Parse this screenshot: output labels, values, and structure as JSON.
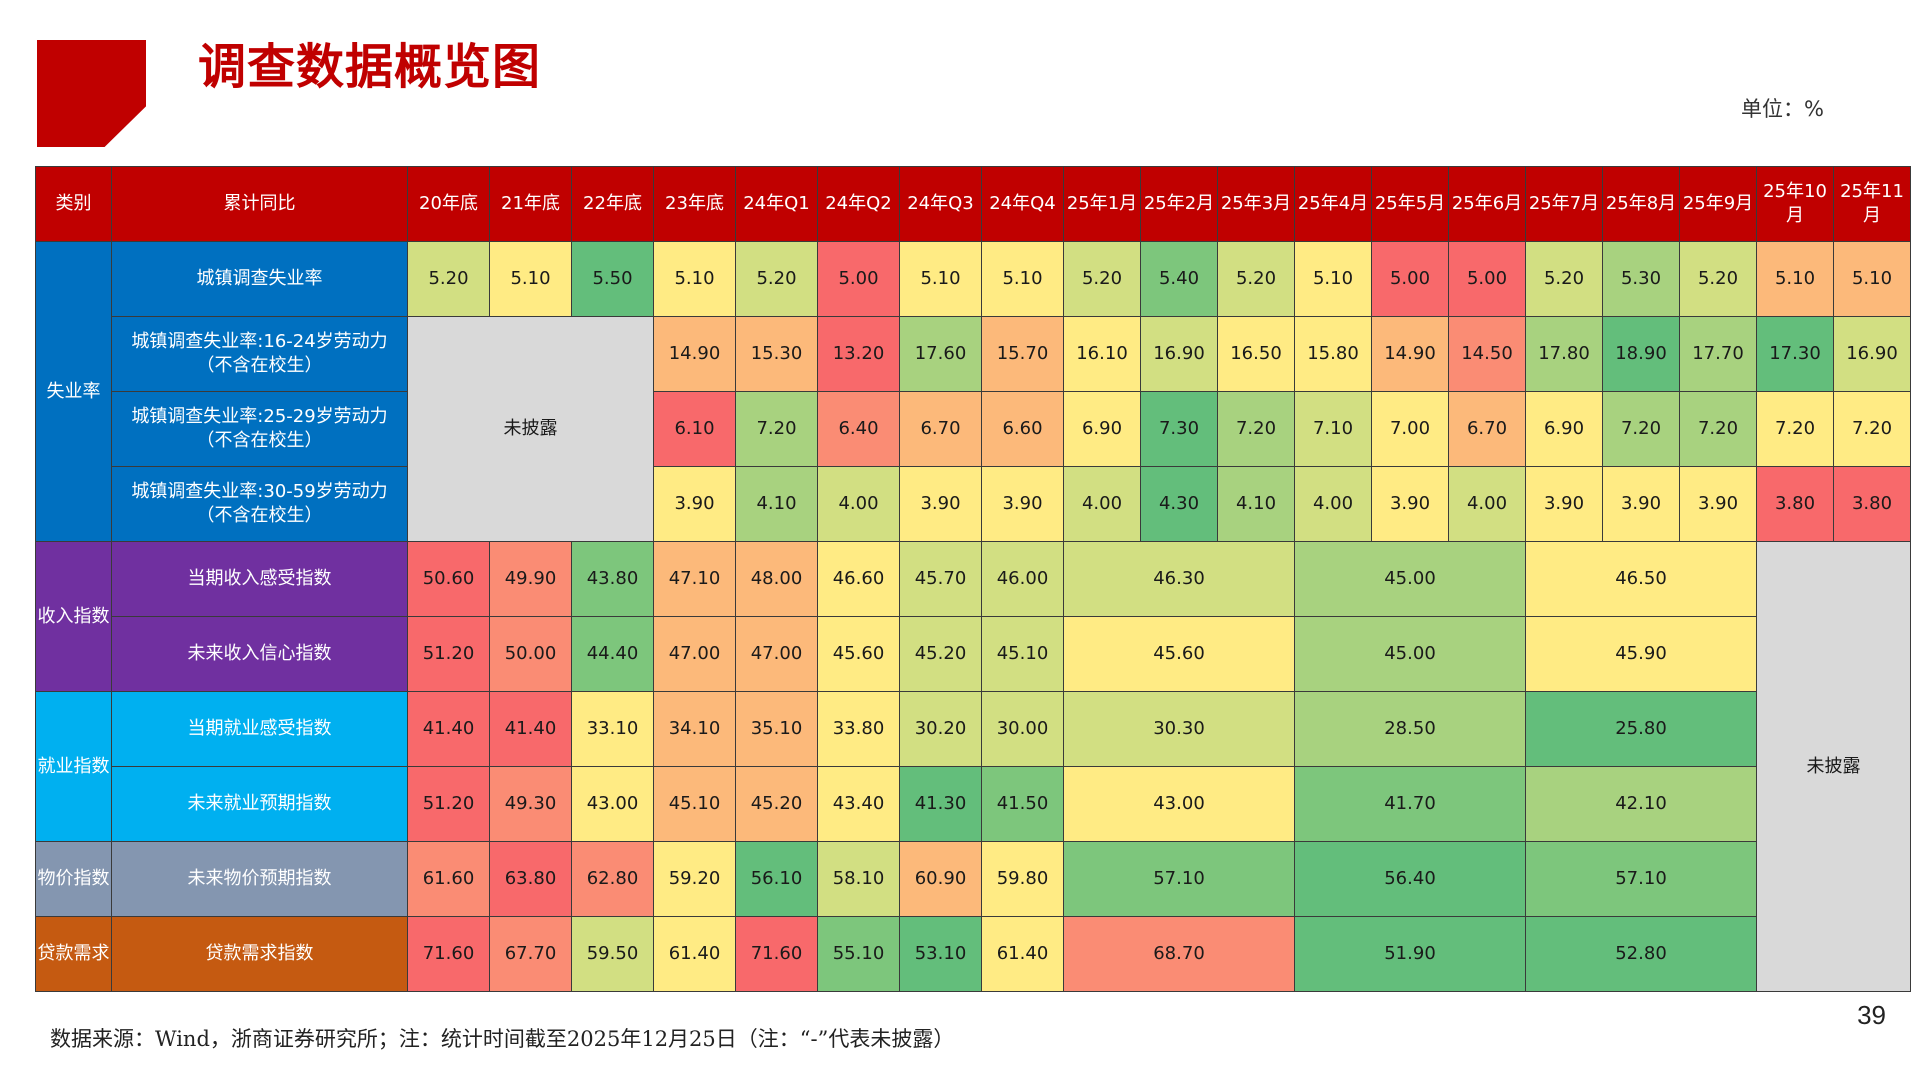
{
  "title": "调查数据概览图",
  "unit": "单位：%",
  "source": "数据来源：Wind，浙商证券研究所；注：统计时间截至2025年12月25日（注：“-”代表未披露）",
  "page_number": "39",
  "not_disclosed": "未披露",
  "colors": {
    "red": "#f8696b",
    "salmon": "#fa8c74",
    "orange": "#fcb97a",
    "yellow": "#ffeb84",
    "lime": "#d2df82",
    "lgreen": "#a8d27f",
    "green": "#7dc67c",
    "dgreen": "#63be7b",
    "accent": "#c00000"
  },
  "headers": [
    "类别",
    "累计同比",
    "20年底",
    "21年底",
    "22年底",
    "23年底",
    "24年Q1",
    "24年Q2",
    "24年Q3",
    "24年Q4",
    "25年1月",
    "25年2月",
    "25年3月",
    "25年4月",
    "25年5月",
    "25年6月",
    "25年7月",
    "25年8月",
    "25年9月",
    "25年10月",
    "25年11月"
  ],
  "categories": [
    {
      "label": "失业率",
      "color": "blue"
    },
    {
      "label": "收入指数",
      "color": "purple"
    },
    {
      "label": "就业指数",
      "color": "cyan"
    },
    {
      "label": "物价指数",
      "color": "slate"
    },
    {
      "label": "贷款需求",
      "color": "brown"
    }
  ],
  "rows": [
    {
      "label": "城镇调查失业率",
      "cells": [
        [
          "5.20",
          "lime"
        ],
        [
          "5.10",
          "yellow"
        ],
        [
          "5.50",
          "dgreen"
        ],
        [
          "5.10",
          "yellow"
        ],
        [
          "5.20",
          "lime"
        ],
        [
          "5.00",
          "red"
        ],
        [
          "5.10",
          "yellow"
        ],
        [
          "5.10",
          "yellow"
        ],
        [
          "5.20",
          "lime"
        ],
        [
          "5.40",
          "green"
        ],
        [
          "5.20",
          "lime"
        ],
        [
          "5.10",
          "yellow"
        ],
        [
          "5.00",
          "red"
        ],
        [
          "5.00",
          "red"
        ],
        [
          "5.20",
          "lime"
        ],
        [
          "5.30",
          "lgreen"
        ],
        [
          "5.20",
          "lime"
        ],
        [
          "5.10",
          "orange"
        ],
        [
          "5.10",
          "orange"
        ]
      ]
    },
    {
      "label": "城镇调查失业率:16-24岁劳动力\n（不含在校生）",
      "cells": [
        [
          "14.90",
          "orange"
        ],
        [
          "15.30",
          "orange"
        ],
        [
          "13.20",
          "red"
        ],
        [
          "17.60",
          "lgreen"
        ],
        [
          "15.70",
          "orange"
        ],
        [
          "16.10",
          "yellow"
        ],
        [
          "16.90",
          "lime"
        ],
        [
          "16.50",
          "yellow"
        ],
        [
          "15.80",
          "yellow"
        ],
        [
          "14.90",
          "orange"
        ],
        [
          "14.50",
          "salmon"
        ],
        [
          "17.80",
          "lgreen"
        ],
        [
          "18.90",
          "dgreen"
        ],
        [
          "17.70",
          "lgreen"
        ],
        [
          "17.30",
          "dgreen"
        ],
        [
          "16.90",
          "lime"
        ]
      ]
    },
    {
      "label": "城镇调查失业率:25-29岁劳动力\n（不含在校生）",
      "cells": [
        [
          "6.10",
          "red"
        ],
        [
          "7.20",
          "lgreen"
        ],
        [
          "6.40",
          "salmon"
        ],
        [
          "6.70",
          "orange"
        ],
        [
          "6.60",
          "orange"
        ],
        [
          "6.90",
          "yellow"
        ],
        [
          "7.30",
          "dgreen"
        ],
        [
          "7.20",
          "lgreen"
        ],
        [
          "7.10",
          "lime"
        ],
        [
          "7.00",
          "yellow"
        ],
        [
          "6.70",
          "orange"
        ],
        [
          "6.90",
          "yellow"
        ],
        [
          "7.20",
          "lgreen"
        ],
        [
          "7.20",
          "lgreen"
        ],
        [
          "7.20",
          "yellow"
        ],
        [
          "7.20",
          "yellow"
        ]
      ]
    },
    {
      "label": "城镇调查失业率:30-59岁劳动力\n（不含在校生）",
      "cells": [
        [
          "3.90",
          "yellow"
        ],
        [
          "4.10",
          "lgreen"
        ],
        [
          "4.00",
          "lime"
        ],
        [
          "3.90",
          "yellow"
        ],
        [
          "3.90",
          "yellow"
        ],
        [
          "4.00",
          "lime"
        ],
        [
          "4.30",
          "dgreen"
        ],
        [
          "4.10",
          "lgreen"
        ],
        [
          "4.00",
          "lime"
        ],
        [
          "3.90",
          "yellow"
        ],
        [
          "4.00",
          "lime"
        ],
        [
          "3.90",
          "yellow"
        ],
        [
          "3.90",
          "yellow"
        ],
        [
          "3.90",
          "yellow"
        ],
        [
          "3.80",
          "red"
        ],
        [
          "3.80",
          "red"
        ]
      ]
    },
    {
      "label": "当期收入感受指数",
      "cells": [
        [
          "50.60",
          "red"
        ],
        [
          "49.90",
          "salmon"
        ],
        [
          "43.80",
          "green"
        ],
        [
          "47.10",
          "orange"
        ],
        [
          "48.00",
          "orange"
        ],
        [
          "46.60",
          "yellow"
        ],
        [
          "45.70",
          "lime"
        ],
        [
          "46.00",
          "lime"
        ]
      ],
      "q": [
        [
          "46.30",
          "lime"
        ],
        [
          "45.00",
          "lgreen"
        ],
        [
          "46.50",
          "yellow"
        ]
      ]
    },
    {
      "label": "未来收入信心指数",
      "cells": [
        [
          "51.20",
          "red"
        ],
        [
          "50.00",
          "salmon"
        ],
        [
          "44.40",
          "green"
        ],
        [
          "47.00",
          "orange"
        ],
        [
          "47.00",
          "orange"
        ],
        [
          "45.60",
          "yellow"
        ],
        [
          "45.20",
          "lime"
        ],
        [
          "45.10",
          "lime"
        ]
      ],
      "q": [
        [
          "45.60",
          "yellow"
        ],
        [
          "45.00",
          "lgreen"
        ],
        [
          "45.90",
          "yellow"
        ]
      ]
    },
    {
      "label": "当期就业感受指数",
      "cells": [
        [
          "41.40",
          "red"
        ],
        [
          "41.40",
          "red"
        ],
        [
          "33.10",
          "yellow"
        ],
        [
          "34.10",
          "orange"
        ],
        [
          "35.10",
          "orange"
        ],
        [
          "33.80",
          "yellow"
        ],
        [
          "30.20",
          "lime"
        ],
        [
          "30.00",
          "lime"
        ]
      ],
      "q": [
        [
          "30.30",
          "lime"
        ],
        [
          "28.50",
          "lgreen"
        ],
        [
          "25.80",
          "dgreen"
        ]
      ]
    },
    {
      "label": "未来就业预期指数",
      "cells": [
        [
          "51.20",
          "red"
        ],
        [
          "49.30",
          "salmon"
        ],
        [
          "43.00",
          "yellow"
        ],
        [
          "45.10",
          "orange"
        ],
        [
          "45.20",
          "orange"
        ],
        [
          "43.40",
          "yellow"
        ],
        [
          "41.30",
          "dgreen"
        ],
        [
          "41.50",
          "green"
        ]
      ],
      "q": [
        [
          "43.00",
          "yellow"
        ],
        [
          "41.70",
          "green"
        ],
        [
          "42.10",
          "lgreen"
        ]
      ]
    },
    {
      "label": "未来物价预期指数",
      "cells": [
        [
          "61.60",
          "salmon"
        ],
        [
          "63.80",
          "red"
        ],
        [
          "62.80",
          "salmon"
        ],
        [
          "59.20",
          "yellow"
        ],
        [
          "56.10",
          "dgreen"
        ],
        [
          "58.10",
          "lime"
        ],
        [
          "60.90",
          "orange"
        ],
        [
          "59.80",
          "yellow"
        ]
      ],
      "q": [
        [
          "57.10",
          "green"
        ],
        [
          "56.40",
          "dgreen"
        ],
        [
          "57.10",
          "green"
        ]
      ]
    },
    {
      "label": "贷款需求指数",
      "cells": [
        [
          "71.60",
          "red"
        ],
        [
          "67.70",
          "salmon"
        ],
        [
          "59.50",
          "lime"
        ],
        [
          "61.40",
          "yellow"
        ],
        [
          "71.60",
          "red"
        ],
        [
          "55.10",
          "green"
        ],
        [
          "53.10",
          "dgreen"
        ],
        [
          "61.40",
          "yellow"
        ]
      ],
      "q": [
        [
          "68.70",
          "salmon"
        ],
        [
          "51.90",
          "dgreen"
        ],
        [
          "52.80",
          "dgreen"
        ]
      ]
    }
  ]
}
